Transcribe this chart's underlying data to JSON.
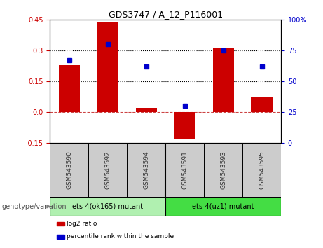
{
  "title": "GDS3747 / A_12_P116001",
  "samples": [
    "GSM543590",
    "GSM543592",
    "GSM543594",
    "GSM543591",
    "GSM543593",
    "GSM543595"
  ],
  "log2_ratio": [
    0.23,
    0.44,
    0.02,
    -0.13,
    0.31,
    0.07
  ],
  "percentile_rank": [
    67,
    80,
    62,
    30,
    75,
    62
  ],
  "bar_color": "#cc0000",
  "dot_color": "#0000cc",
  "ylim_left": [
    -0.15,
    0.45
  ],
  "ylim_right": [
    0,
    100
  ],
  "yticks_left": [
    -0.15,
    0.0,
    0.15,
    0.3,
    0.45
  ],
  "yticks_right": [
    0,
    25,
    50,
    75,
    100
  ],
  "hlines": [
    0.15,
    0.3
  ],
  "groups": [
    {
      "label": "ets-4(ok165) mutant",
      "indices": [
        0,
        1,
        2
      ],
      "color": "#b0f0b0"
    },
    {
      "label": "ets-4(uz1) mutant",
      "indices": [
        3,
        4,
        5
      ],
      "color": "#44dd44"
    }
  ],
  "group_label": "genotype/variation",
  "legend_items": [
    {
      "label": "log2 ratio",
      "color": "#cc0000"
    },
    {
      "label": "percentile rank within the sample",
      "color": "#0000cc"
    }
  ],
  "left_ylabel_color": "#cc0000",
  "right_ylabel_color": "#0000cc",
  "bar_width": 0.55,
  "zero_line_color": "#cc4444",
  "sample_box_color": "#cccccc",
  "sample_text_color": "#333333"
}
